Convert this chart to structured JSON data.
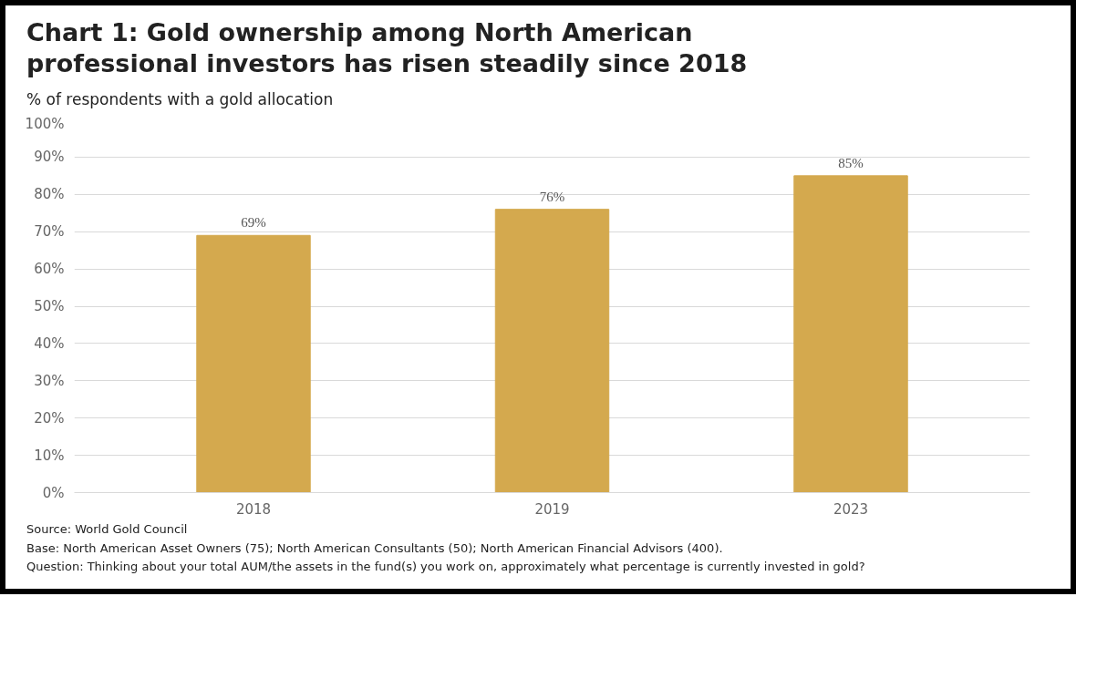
{
  "chart_data": {
    "type": "bar",
    "title": "Chart 1: Gold ownership among North American professional investors has risen steadily since 2018",
    "ylabel": "% of respondents with a gold allocation",
    "categories": [
      "2018",
      "2019",
      "2023"
    ],
    "values": [
      69,
      76,
      85
    ],
    "color": "#d4a94e",
    "ylim": [
      0,
      100
    ],
    "yticks": [
      {
        "value": 0,
        "label": "0%"
      },
      {
        "value": 10,
        "label": "10%"
      },
      {
        "value": 20,
        "label": "20%"
      },
      {
        "value": 30,
        "label": "30%"
      },
      {
        "value": 40,
        "label": "40%"
      },
      {
        "value": 50,
        "label": "50%"
      },
      {
        "value": 60,
        "label": "60%"
      },
      {
        "value": 70,
        "label": "70%"
      },
      {
        "value": 80,
        "label": "80%"
      },
      {
        "value": 90,
        "label": "90%"
      },
      {
        "value": 100,
        "label": "100%"
      }
    ],
    "value_labels": [
      "69%",
      "76%",
      "85%"
    ],
    "grid": "y",
    "annotations": [
      "Source: World Gold Council",
      "Base: North American Asset Owners (75); North American Consultants (50); North American Financial Advisors (400).",
      "Question: Thinking about your total AUM/the assets in the fund(s) you work on, approximately what percentage is currently invested in gold?"
    ]
  }
}
